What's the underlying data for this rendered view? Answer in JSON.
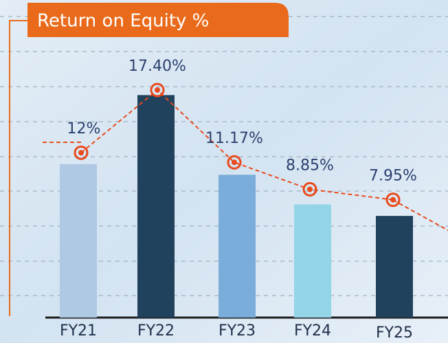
{
  "chart_data": {
    "type": "bar",
    "title": "Return on Equity %",
    "categories": [
      "FY21",
      "FY22",
      "FY23",
      "FY24",
      "FY25"
    ],
    "values": [
      12,
      17.4,
      11.17,
      8.85,
      7.95
    ],
    "value_labels": [
      "12%",
      "17.40%",
      "11.17%",
      "8.85%",
      "7.95%"
    ],
    "colors": [
      "#afc8e4",
      "#21425d",
      "#7badda",
      "#93d5e7",
      "#21425d"
    ],
    "line_color": "#e94a1c"
  }
}
